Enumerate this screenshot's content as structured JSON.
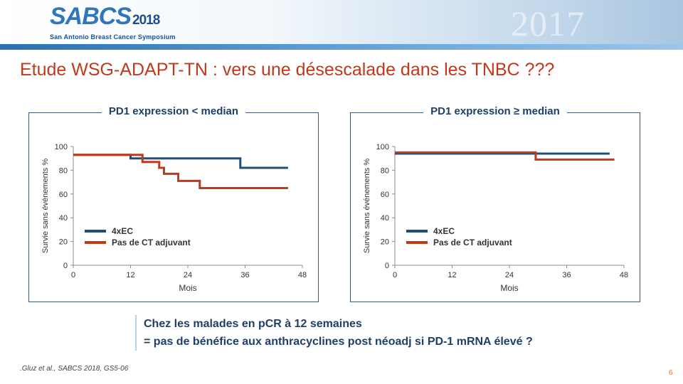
{
  "header": {
    "logo_main": "SABCS",
    "logo_year": "2018",
    "logo_subtitle": "San Antonio Breast Cancer Symposium",
    "watermark": "2017"
  },
  "slide": {
    "title": "Etude WSG-ADAPT-TN : vers une désescalade dans les TNBC ???",
    "callout_line1": "Chez les malades en pCR à 12 semaines",
    "callout_line2": "= pas de bénéfice aux anthracyclines post néoadj si PD-1 mRNA élevé  ?",
    "citation": ".Gluz et al., SABCS 2018, GS5-06",
    "slide_number": "6"
  },
  "colors": {
    "title": "#c0391b",
    "series_4xEC": "#1f4e79",
    "series_pas_de_CT": "#c0391b"
  },
  "chart_data": [
    {
      "type": "line",
      "step": true,
      "title": "PD1 expression < median",
      "xlabel": "Mois",
      "ylabel": "Survie  sans  événements  %",
      "xlim": [
        0,
        48
      ],
      "ylim": [
        0,
        100
      ],
      "xticks": [
        "0",
        "12",
        "24",
        "36",
        "48"
      ],
      "yticks": [
        "0",
        "20",
        "40",
        "60",
        "80",
        "100"
      ],
      "legend_position": "left-middle",
      "series": [
        {
          "name": "4xEC",
          "color": "#1f4e79",
          "x": [
            0,
            12,
            35,
            45
          ],
          "y": [
            93,
            90,
            82,
            82
          ]
        },
        {
          "name": "Pas de CT adjuvant",
          "color": "#c0391b",
          "x": [
            0,
            14.5,
            18,
            19,
            22,
            26.5,
            45
          ],
          "y": [
            93,
            87,
            82,
            77,
            71,
            65,
            65
          ]
        }
      ]
    },
    {
      "type": "line",
      "step": true,
      "title": "PD1 expression ≥ median",
      "xlabel": "Mois",
      "ylabel": "Survie  sans  événements  %",
      "xlim": [
        0,
        48
      ],
      "ylim": [
        0,
        100
      ],
      "xticks": [
        "0",
        "12",
        "24",
        "36",
        "48"
      ],
      "yticks": [
        "0",
        "20",
        "40",
        "60",
        "80",
        "100"
      ],
      "legend_position": "left-middle",
      "series": [
        {
          "name": "4xEC",
          "color": "#1f4e79",
          "x": [
            0,
            45
          ],
          "y": [
            94,
            94
          ]
        },
        {
          "name": "Pas de CT adjuvant",
          "color": "#c0391b",
          "x": [
            0,
            29.5,
            46
          ],
          "y": [
            95,
            89,
            89
          ]
        }
      ]
    }
  ]
}
